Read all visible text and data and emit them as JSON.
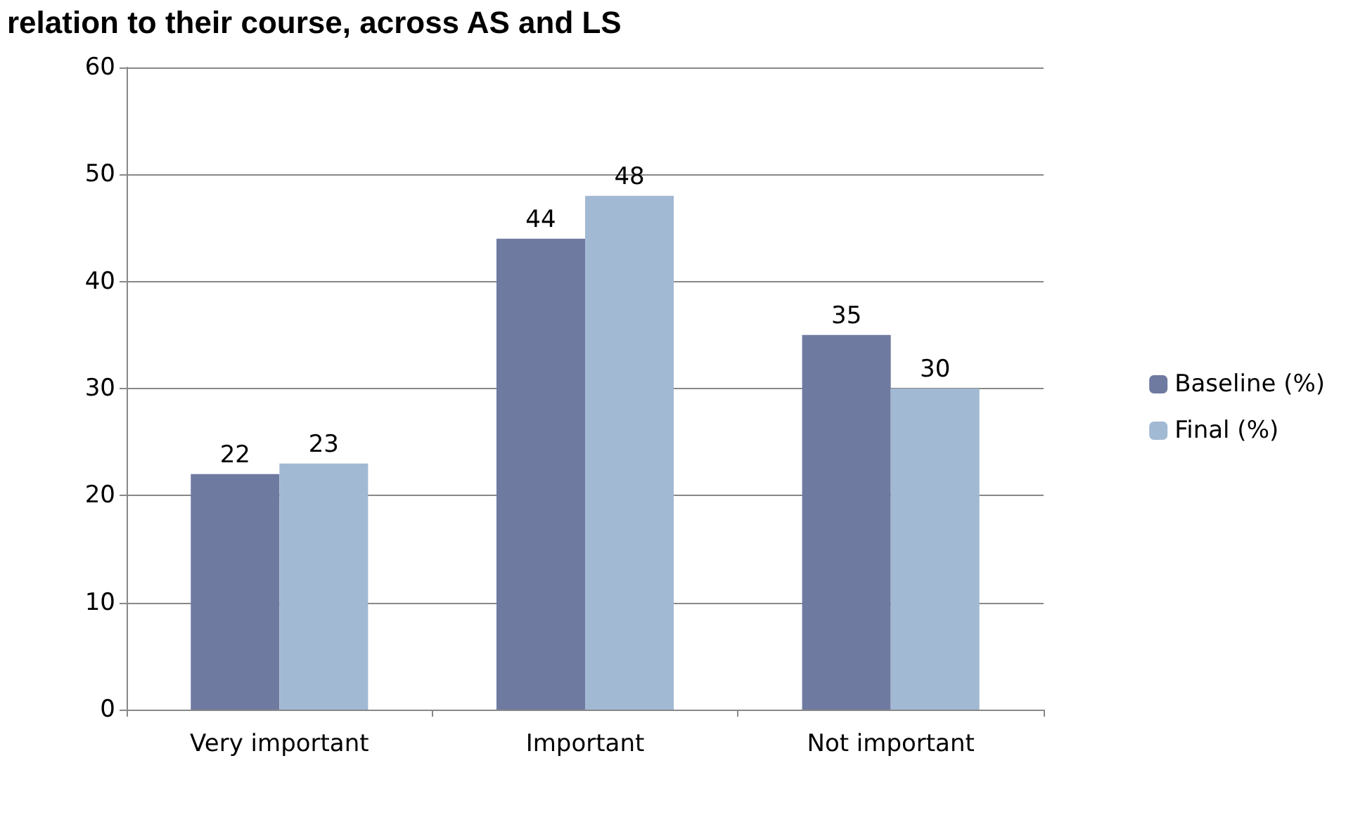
{
  "chart_data": {
    "type": "bar",
    "title": "relation to their course, across AS and LS",
    "categories": [
      "Very important",
      "Important",
      "Not important"
    ],
    "series": [
      {
        "name": "Baseline (%)",
        "color": "#6f7aa1",
        "values": [
          22,
          44,
          35
        ]
      },
      {
        "name": "Final (%)",
        "color": "#a2b9d3",
        "values": [
          23,
          48,
          30
        ]
      }
    ],
    "ylim": [
      0,
      60
    ],
    "yticks": [
      0,
      10,
      20,
      30,
      40,
      50,
      60
    ],
    "grid": "y",
    "legend": "right",
    "data_labels": true
  }
}
